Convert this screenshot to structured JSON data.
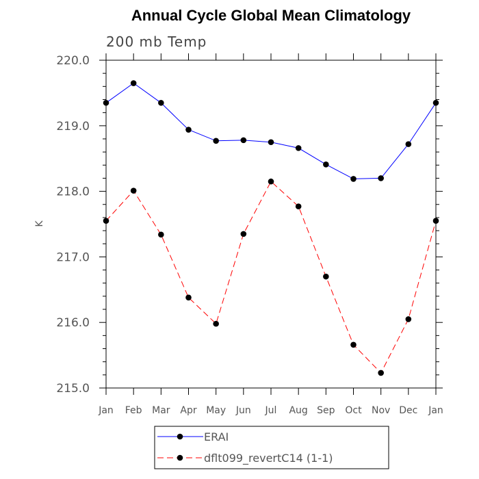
{
  "chart_data": {
    "type": "line",
    "title": "Annual Cycle Global Mean Climatology",
    "subtitle": "200 mb Temp",
    "xlabel": "",
    "ylabel": "K",
    "categories": [
      "Jan",
      "Feb",
      "Mar",
      "Apr",
      "May",
      "Jun",
      "Jul",
      "Aug",
      "Sep",
      "Oct",
      "Nov",
      "Dec",
      "Jan"
    ],
    "ylim": [
      215.0,
      220.0
    ],
    "yticks": [
      "215.0",
      "216.0",
      "217.0",
      "218.0",
      "219.0",
      "220.0"
    ],
    "grid": false,
    "legend_position": "bottom",
    "series": [
      {
        "name": "ERAI",
        "color": "#0000ff",
        "line_style": "solid",
        "values": [
          219.35,
          219.65,
          219.35,
          218.94,
          218.77,
          218.78,
          218.75,
          218.66,
          218.41,
          218.19,
          218.2,
          218.72,
          219.35
        ]
      },
      {
        "name": "dflt099_revertC14 (1-1)",
        "color": "#ff0000",
        "line_style": "dashed",
        "values": [
          217.55,
          218.01,
          217.34,
          216.38,
          215.98,
          217.35,
          218.15,
          217.77,
          216.7,
          215.66,
          215.23,
          216.05,
          217.55
        ]
      }
    ]
  }
}
